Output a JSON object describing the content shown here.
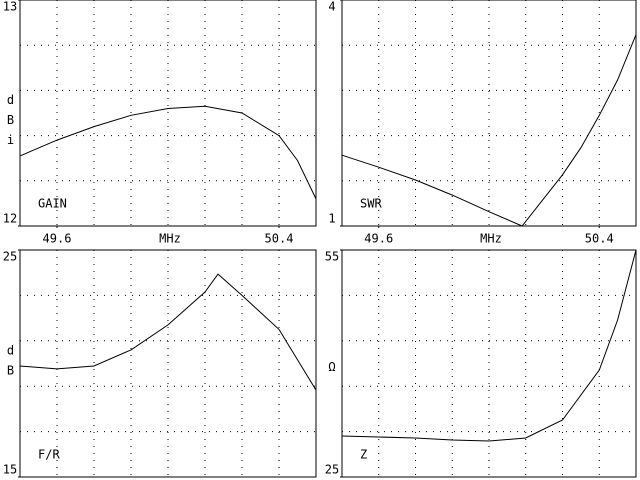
{
  "chart_data": [
    {
      "type": "line",
      "label": "GAIN",
      "y_label": "dBi",
      "x_label": "MHz",
      "color": "#000000",
      "xlim": [
        49.4667,
        50.5333
      ],
      "xticks": [
        49.6,
        50.4
      ],
      "xgrid": [
        49.6,
        49.7333,
        49.8667,
        50.0,
        50.1333,
        50.2667,
        50.4
      ],
      "ylim": [
        12,
        13
      ],
      "yticks": [
        12,
        13
      ],
      "ygrid": [
        12.2,
        12.4,
        12.6,
        12.8
      ],
      "x": [
        49.4667,
        49.6,
        49.7333,
        49.8667,
        50.0,
        50.1333,
        50.2667,
        50.4,
        50.4667,
        50.5333
      ],
      "values": [
        12.31,
        12.38,
        12.44,
        12.49,
        12.52,
        12.53,
        12.5,
        12.4,
        12.29,
        12.12
      ]
    },
    {
      "type": "line",
      "label": "SWR",
      "x_label": "MHz",
      "color": "#000000",
      "xlim": [
        49.4667,
        50.5333
      ],
      "xticks": [
        49.6,
        50.4
      ],
      "xgrid": [
        49.6,
        49.7333,
        49.8667,
        50.0,
        50.1333,
        50.2667,
        50.4
      ],
      "ylim": [
        1,
        4
      ],
      "yticks": [
        1,
        4
      ],
      "ygrid": [
        1.6,
        2.2,
        2.8,
        3.4
      ],
      "x": [
        49.4667,
        49.6,
        49.7333,
        49.8667,
        50.0,
        50.12,
        50.2667,
        50.3333,
        50.4,
        50.4667,
        50.5333
      ],
      "values": [
        1.94,
        1.78,
        1.61,
        1.41,
        1.19,
        1.0,
        1.68,
        2.04,
        2.47,
        2.94,
        3.54
      ]
    },
    {
      "type": "line",
      "label": "F/R",
      "y_label": "dB",
      "color": "#000000",
      "xlim": [
        49.4667,
        50.5333
      ],
      "xgrid": [
        49.6,
        49.7333,
        49.8667,
        50.0,
        50.1333,
        50.2667,
        50.4
      ],
      "ylim": [
        15,
        25
      ],
      "yticks": [
        15,
        25
      ],
      "ygrid": [
        17,
        19,
        21,
        23
      ],
      "x": [
        49.4667,
        49.6,
        49.7333,
        49.8667,
        50.0,
        50.1333,
        50.18,
        50.2667,
        50.4,
        50.5333
      ],
      "values": [
        19.89,
        19.76,
        19.89,
        20.6,
        21.7,
        23.15,
        23.94,
        23.0,
        21.5,
        18.83
      ]
    },
    {
      "type": "line",
      "label": "Z",
      "y_label": "Ω",
      "color": "#000000",
      "xlim": [
        49.4667,
        50.5333
      ],
      "xgrid": [
        49.6,
        49.7333,
        49.8667,
        50.0,
        50.1333,
        50.2667,
        50.4
      ],
      "ylim": [
        25,
        55
      ],
      "yticks": [
        25,
        55
      ],
      "ygrid": [
        31,
        37,
        43,
        49
      ],
      "x": [
        49.4667,
        49.6,
        49.7333,
        49.8667,
        50.0,
        50.1333,
        50.2667,
        50.4,
        50.4667,
        50.5333
      ],
      "values": [
        30.42,
        30.29,
        30.15,
        29.89,
        29.76,
        30.15,
        32.53,
        39.14,
        45.75,
        55
      ]
    }
  ]
}
